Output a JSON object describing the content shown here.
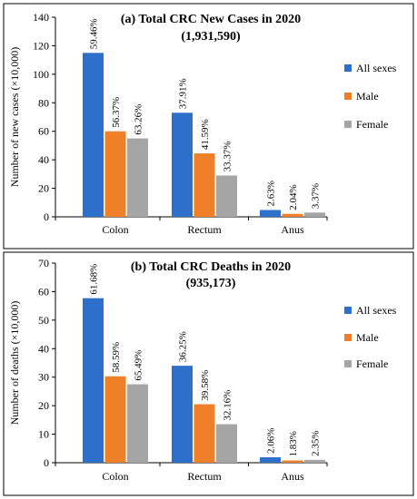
{
  "chart_data": [
    {
      "type": "bar",
      "title": "(a) Total CRC New Cases in 2020",
      "subtitle": "(1,931,590)",
      "ylabel": "Number of new cases (×10,000)",
      "xlabel": "",
      "ylim": [
        0,
        140
      ],
      "yticks": [
        0,
        20,
        40,
        60,
        80,
        100,
        120,
        140
      ],
      "categories": [
        "Colon",
        "Rectum",
        "Anus"
      ],
      "legend_position": "right",
      "series": [
        {
          "name": "All sexes",
          "color": "#2E6FCC",
          "values": [
            115,
            73,
            4.8
          ],
          "labels": [
            "59.46%",
            "37.91%",
            "2.63%"
          ]
        },
        {
          "name": "Male",
          "color": "#F07F2A",
          "values": [
            60,
            44.5,
            2.1
          ],
          "labels": [
            "56.37%",
            "41.59%",
            "2.04%"
          ]
        },
        {
          "name": "Female",
          "color": "#A5A5A5",
          "values": [
            55,
            29,
            3
          ],
          "labels": [
            "63.26%",
            "33.37%",
            "3.37%"
          ]
        }
      ]
    },
    {
      "type": "bar",
      "title": "(b) Total CRC Deaths in 2020",
      "subtitle": "(935,173)",
      "ylabel": "Number of deaths (×10,000)",
      "xlabel": "",
      "ylim": [
        0,
        70
      ],
      "yticks": [
        0,
        10,
        20,
        30,
        40,
        50,
        60,
        70
      ],
      "categories": [
        "Colon",
        "Rectum",
        "Anus"
      ],
      "legend_position": "right",
      "series": [
        {
          "name": "All sexes",
          "color": "#2E6FCC",
          "values": [
            57.7,
            34,
            1.9
          ],
          "labels": [
            "61.68%",
            "36.25%",
            "2.06%"
          ]
        },
        {
          "name": "Male",
          "color": "#F07F2A",
          "values": [
            30.3,
            20.5,
            0.8
          ],
          "labels": [
            "58.59%",
            "39.58%",
            "1.83%"
          ]
        },
        {
          "name": "Female",
          "color": "#A5A5A5",
          "values": [
            27.5,
            13.5,
            1
          ],
          "labels": [
            "65.49%",
            "32.16%",
            "2.35%"
          ]
        }
      ]
    }
  ]
}
